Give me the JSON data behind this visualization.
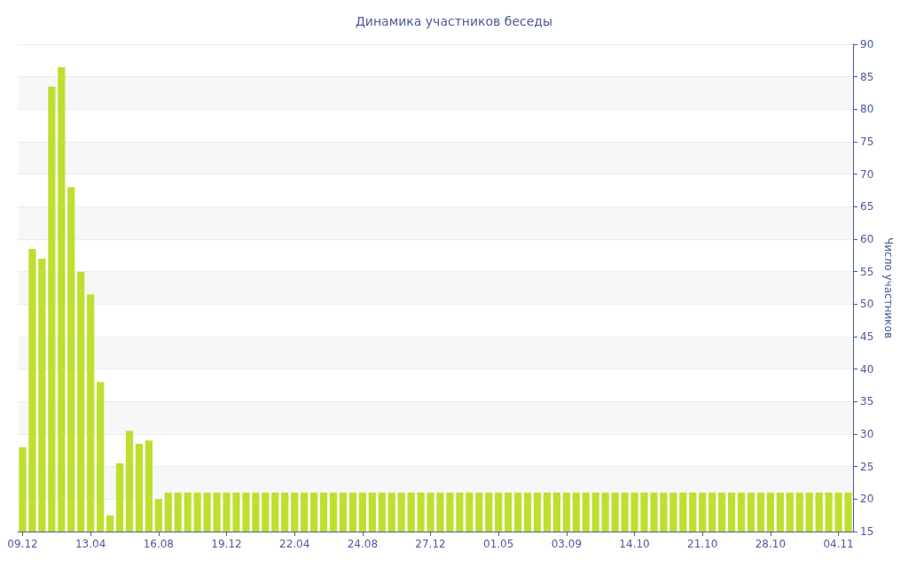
{
  "chart_data": {
    "type": "bar",
    "title": "Динамика участников беседы",
    "ylabel": "Число участников",
    "categories": [
      "09.12",
      null,
      null,
      null,
      null,
      null,
      null,
      "13.04",
      null,
      null,
      null,
      null,
      null,
      null,
      "16.08",
      null,
      null,
      null,
      null,
      null,
      null,
      "19.12",
      null,
      null,
      null,
      null,
      null,
      null,
      "22.04",
      null,
      null,
      null,
      null,
      null,
      null,
      "24.08",
      null,
      null,
      null,
      null,
      null,
      null,
      "27.12",
      null,
      null,
      null,
      null,
      null,
      null,
      "01.05",
      null,
      null,
      null,
      null,
      null,
      null,
      "03.09",
      null,
      null,
      null,
      null,
      null,
      null,
      "14.10",
      null,
      null,
      null,
      null,
      null,
      null,
      "21.10",
      null,
      null,
      null,
      null,
      null,
      null,
      "28.10",
      null,
      null,
      null,
      null,
      null,
      null,
      "04.11",
      null
    ],
    "values": [
      28,
      58.5,
      57,
      83.5,
      86.5,
      68,
      55,
      51.5,
      38,
      17.5,
      25.5,
      30.5,
      28.5,
      29,
      20,
      21,
      21,
      21,
      21,
      21,
      21,
      21,
      21,
      21,
      21,
      21,
      21,
      21,
      21,
      21,
      21,
      21,
      21,
      21,
      21,
      21,
      21,
      21,
      21,
      21,
      21,
      21,
      21,
      21,
      21,
      21,
      21,
      21,
      21,
      21,
      21,
      21,
      21,
      21,
      21,
      21,
      21,
      21,
      21,
      21,
      21,
      21,
      21,
      21,
      21,
      21,
      21,
      21,
      21,
      21,
      21,
      21,
      21,
      21,
      21,
      21,
      21,
      21,
      21,
      21,
      21,
      21,
      21,
      21,
      21,
      21
    ],
    "color": "#bde02f",
    "ylim": [
      15,
      90
    ],
    "yticks": [
      15,
      20,
      25,
      30,
      35,
      40,
      45,
      50,
      55,
      60,
      65,
      70,
      75,
      80,
      85,
      90
    ],
    "grid": "y"
  }
}
